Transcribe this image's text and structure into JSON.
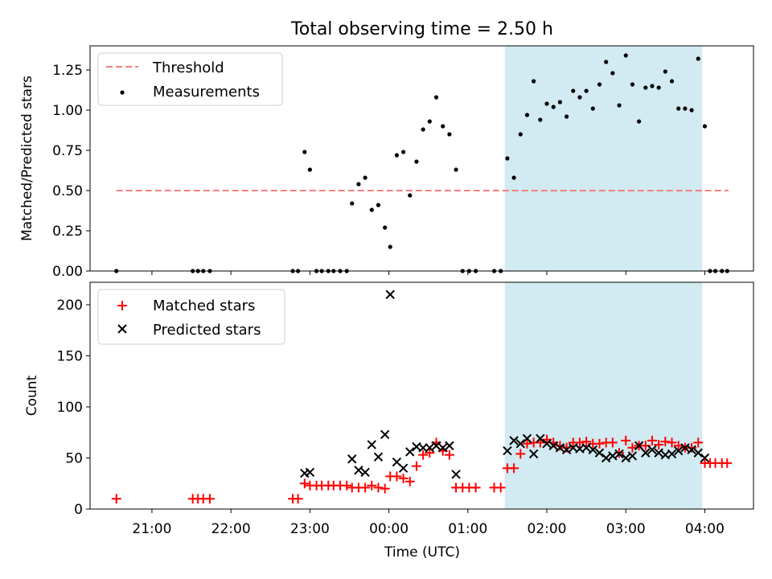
{
  "title": "Total observing time = 2.50 h",
  "xlabel": "Time (UTC)",
  "x_ticks": [
    "21:00",
    "22:00",
    "23:00",
    "00:00",
    "01:00",
    "02:00",
    "03:00",
    "04:00"
  ],
  "colors": {
    "threshold": "#f08080",
    "measurements": "#000000",
    "matched": "#ff0000",
    "predicted": "#000000",
    "span": "#add8e6"
  },
  "chart_data": [
    {
      "type": "scatter",
      "title": "Total observing time = 2.50 h",
      "ylabel": "Matched/Predicted stars",
      "xlim": [
        "20:13",
        "04:37"
      ],
      "ylim": [
        0,
        1.4
      ],
      "y_ticks": [
        "0.00",
        "0.25",
        "0.50",
        "0.75",
        "1.00",
        "1.25"
      ],
      "highlight_span": [
        "01:28",
        "03:58"
      ],
      "legend": {
        "placement": "top-left",
        "entries": [
          "Threshold",
          "Measurements"
        ]
      },
      "threshold": {
        "name": "Threshold",
        "y": 0.5,
        "x_range": [
          "20:33",
          "04:18"
        ],
        "style": "dashed"
      },
      "series": [
        {
          "name": "Measurements",
          "points": [
            [
              "20:33",
              0
            ],
            [
              "21:31",
              0
            ],
            [
              "21:35",
              0
            ],
            [
              "21:39",
              0
            ],
            [
              "21:44",
              0
            ],
            [
              "22:47",
              0
            ],
            [
              "22:51",
              0
            ],
            [
              "22:56",
              0.74
            ],
            [
              "23:00",
              0.63
            ],
            [
              "23:05",
              0
            ],
            [
              "23:09",
              0
            ],
            [
              "23:14",
              0
            ],
            [
              "23:18",
              0
            ],
            [
              "23:23",
              0
            ],
            [
              "23:28",
              0
            ],
            [
              "23:32",
              0.42
            ],
            [
              "23:37",
              0.54
            ],
            [
              "23:42",
              0.58
            ],
            [
              "23:47",
              0.38
            ],
            [
              "23:52",
              0.41
            ],
            [
              "23:57",
              0.27
            ],
            [
              "00:01",
              0.15
            ],
            [
              "00:06",
              0.72
            ],
            [
              "00:11",
              0.74
            ],
            [
              "00:16",
              0.47
            ],
            [
              "00:21",
              0.68
            ],
            [
              "00:26",
              0.88
            ],
            [
              "00:31",
              0.93
            ],
            [
              "00:36",
              1.08
            ],
            [
              "00:41",
              0.9
            ],
            [
              "00:46",
              0.85
            ],
            [
              "00:51",
              0.63
            ],
            [
              "00:56",
              0
            ],
            [
              "01:01",
              0
            ],
            [
              "01:06",
              0
            ],
            [
              "01:20",
              0
            ],
            [
              "01:25",
              0
            ],
            [
              "01:30",
              0.7
            ],
            [
              "01:35",
              0.58
            ],
            [
              "01:40",
              0.85
            ],
            [
              "01:45",
              0.97
            ],
            [
              "01:50",
              1.18
            ],
            [
              "01:55",
              0.94
            ],
            [
              "02:00",
              1.04
            ],
            [
              "02:05",
              1.02
            ],
            [
              "02:10",
              1.05
            ],
            [
              "02:15",
              0.96
            ],
            [
              "02:20",
              1.12
            ],
            [
              "02:25",
              1.08
            ],
            [
              "02:30",
              1.12
            ],
            [
              "02:35",
              1.01
            ],
            [
              "02:40",
              1.16
            ],
            [
              "02:45",
              1.3
            ],
            [
              "02:50",
              1.23
            ],
            [
              "02:55",
              1.03
            ],
            [
              "03:00",
              1.34
            ],
            [
              "03:05",
              1.16
            ],
            [
              "03:10",
              0.93
            ],
            [
              "03:15",
              1.14
            ],
            [
              "03:20",
              1.15
            ],
            [
              "03:25",
              1.14
            ],
            [
              "03:30",
              1.24
            ],
            [
              "03:35",
              1.18
            ],
            [
              "03:40",
              1.01
            ],
            [
              "03:45",
              1.01
            ],
            [
              "03:50",
              1.0
            ],
            [
              "03:55",
              1.32
            ],
            [
              "04:00",
              0.9
            ],
            [
              "04:04",
              0
            ],
            [
              "04:08",
              0
            ],
            [
              "04:13",
              0
            ],
            [
              "04:17",
              0
            ]
          ]
        }
      ]
    },
    {
      "type": "scatter",
      "ylabel": "Count",
      "xlabel": "Time (UTC)",
      "xlim": [
        "20:13",
        "04:37"
      ],
      "ylim": [
        0,
        222
      ],
      "y_ticks": [
        "0",
        "50",
        "100",
        "150",
        "200"
      ],
      "highlight_span": [
        "01:28",
        "03:58"
      ],
      "legend": {
        "placement": "top-left",
        "entries": [
          "Matched stars",
          "Predicted stars"
        ]
      },
      "series": [
        {
          "name": "Matched stars",
          "marker": "plus",
          "points": [
            [
              "20:33",
              10
            ],
            [
              "21:31",
              10
            ],
            [
              "21:35",
              10
            ],
            [
              "21:39",
              10
            ],
            [
              "21:44",
              10
            ],
            [
              "22:47",
              10
            ],
            [
              "22:51",
              10
            ],
            [
              "22:56",
              25
            ],
            [
              "23:00",
              23
            ],
            [
              "23:05",
              23
            ],
            [
              "23:09",
              23
            ],
            [
              "23:14",
              23
            ],
            [
              "23:18",
              23
            ],
            [
              "23:23",
              23
            ],
            [
              "23:28",
              23
            ],
            [
              "23:32",
              21
            ],
            [
              "23:37",
              21
            ],
            [
              "23:42",
              21
            ],
            [
              "23:47",
              23
            ],
            [
              "23:52",
              21
            ],
            [
              "23:57",
              20
            ],
            [
              "00:01",
              32
            ],
            [
              "00:06",
              32
            ],
            [
              "00:11",
              30
            ],
            [
              "00:16",
              27
            ],
            [
              "00:21",
              42
            ],
            [
              "00:26",
              53
            ],
            [
              "00:31",
              55
            ],
            [
              "00:36",
              65
            ],
            [
              "00:41",
              57
            ],
            [
              "00:46",
              53
            ],
            [
              "00:51",
              21
            ],
            [
              "00:56",
              21
            ],
            [
              "01:01",
              21
            ],
            [
              "01:06",
              21
            ],
            [
              "01:20",
              21
            ],
            [
              "01:25",
              21
            ],
            [
              "01:30",
              40
            ],
            [
              "01:35",
              40
            ],
            [
              "01:40",
              54
            ],
            [
              "01:45",
              64
            ],
            [
              "01:50",
              65
            ],
            [
              "01:55",
              65
            ],
            [
              "02:00",
              68
            ],
            [
              "02:05",
              65
            ],
            [
              "02:10",
              62
            ],
            [
              "02:15",
              60
            ],
            [
              "02:20",
              65
            ],
            [
              "02:25",
              65
            ],
            [
              "02:30",
              66
            ],
            [
              "02:35",
              64
            ],
            [
              "02:40",
              64
            ],
            [
              "02:45",
              65
            ],
            [
              "02:50",
              65
            ],
            [
              "02:55",
              55
            ],
            [
              "03:00",
              67
            ],
            [
              "03:05",
              60
            ],
            [
              "03:10",
              62
            ],
            [
              "03:15",
              62
            ],
            [
              "03:20",
              67
            ],
            [
              "03:25",
              63
            ],
            [
              "03:30",
              66
            ],
            [
              "03:35",
              65
            ],
            [
              "03:40",
              62
            ],
            [
              "03:45",
              60
            ],
            [
              "03:50",
              60
            ],
            [
              "03:55",
              65
            ],
            [
              "04:00",
              45
            ],
            [
              "04:04",
              45
            ],
            [
              "04:08",
              45
            ],
            [
              "04:13",
              45
            ],
            [
              "04:17",
              45
            ]
          ]
        },
        {
          "name": "Predicted stars",
          "marker": "x",
          "points": [
            [
              "22:56",
              35
            ],
            [
              "23:00",
              36
            ],
            [
              "23:32",
              49
            ],
            [
              "23:37",
              38
            ],
            [
              "23:42",
              36
            ],
            [
              "23:47",
              63
            ],
            [
              "23:52",
              51
            ],
            [
              "23:57",
              73
            ],
            [
              "00:01",
              210
            ],
            [
              "00:06",
              46
            ],
            [
              "00:11",
              40
            ],
            [
              "00:16",
              56
            ],
            [
              "00:21",
              61
            ],
            [
              "00:26",
              60
            ],
            [
              "00:31",
              60
            ],
            [
              "00:36",
              62
            ],
            [
              "00:41",
              60
            ],
            [
              "00:46",
              62
            ],
            [
              "00:51",
              34
            ],
            [
              "01:30",
              57
            ],
            [
              "01:35",
              67
            ],
            [
              "01:40",
              64
            ],
            [
              "01:45",
              69
            ],
            [
              "01:50",
              54
            ],
            [
              "01:55",
              69
            ],
            [
              "02:00",
              64
            ],
            [
              "02:05",
              62
            ],
            [
              "02:10",
              60
            ],
            [
              "02:15",
              58
            ],
            [
              "02:20",
              60
            ],
            [
              "02:25",
              59
            ],
            [
              "02:30",
              60
            ],
            [
              "02:35",
              58
            ],
            [
              "02:40",
              55
            ],
            [
              "02:45",
              50
            ],
            [
              "02:50",
              52
            ],
            [
              "02:55",
              54
            ],
            [
              "03:00",
              50
            ],
            [
              "03:05",
              52
            ],
            [
              "03:10",
              62
            ],
            [
              "03:15",
              55
            ],
            [
              "03:20",
              58
            ],
            [
              "03:25",
              55
            ],
            [
              "03:30",
              53
            ],
            [
              "03:35",
              54
            ],
            [
              "03:40",
              57
            ],
            [
              "03:45",
              60
            ],
            [
              "03:50",
              58
            ],
            [
              "03:55",
              55
            ],
            [
              "04:00",
              50
            ]
          ]
        }
      ]
    }
  ]
}
